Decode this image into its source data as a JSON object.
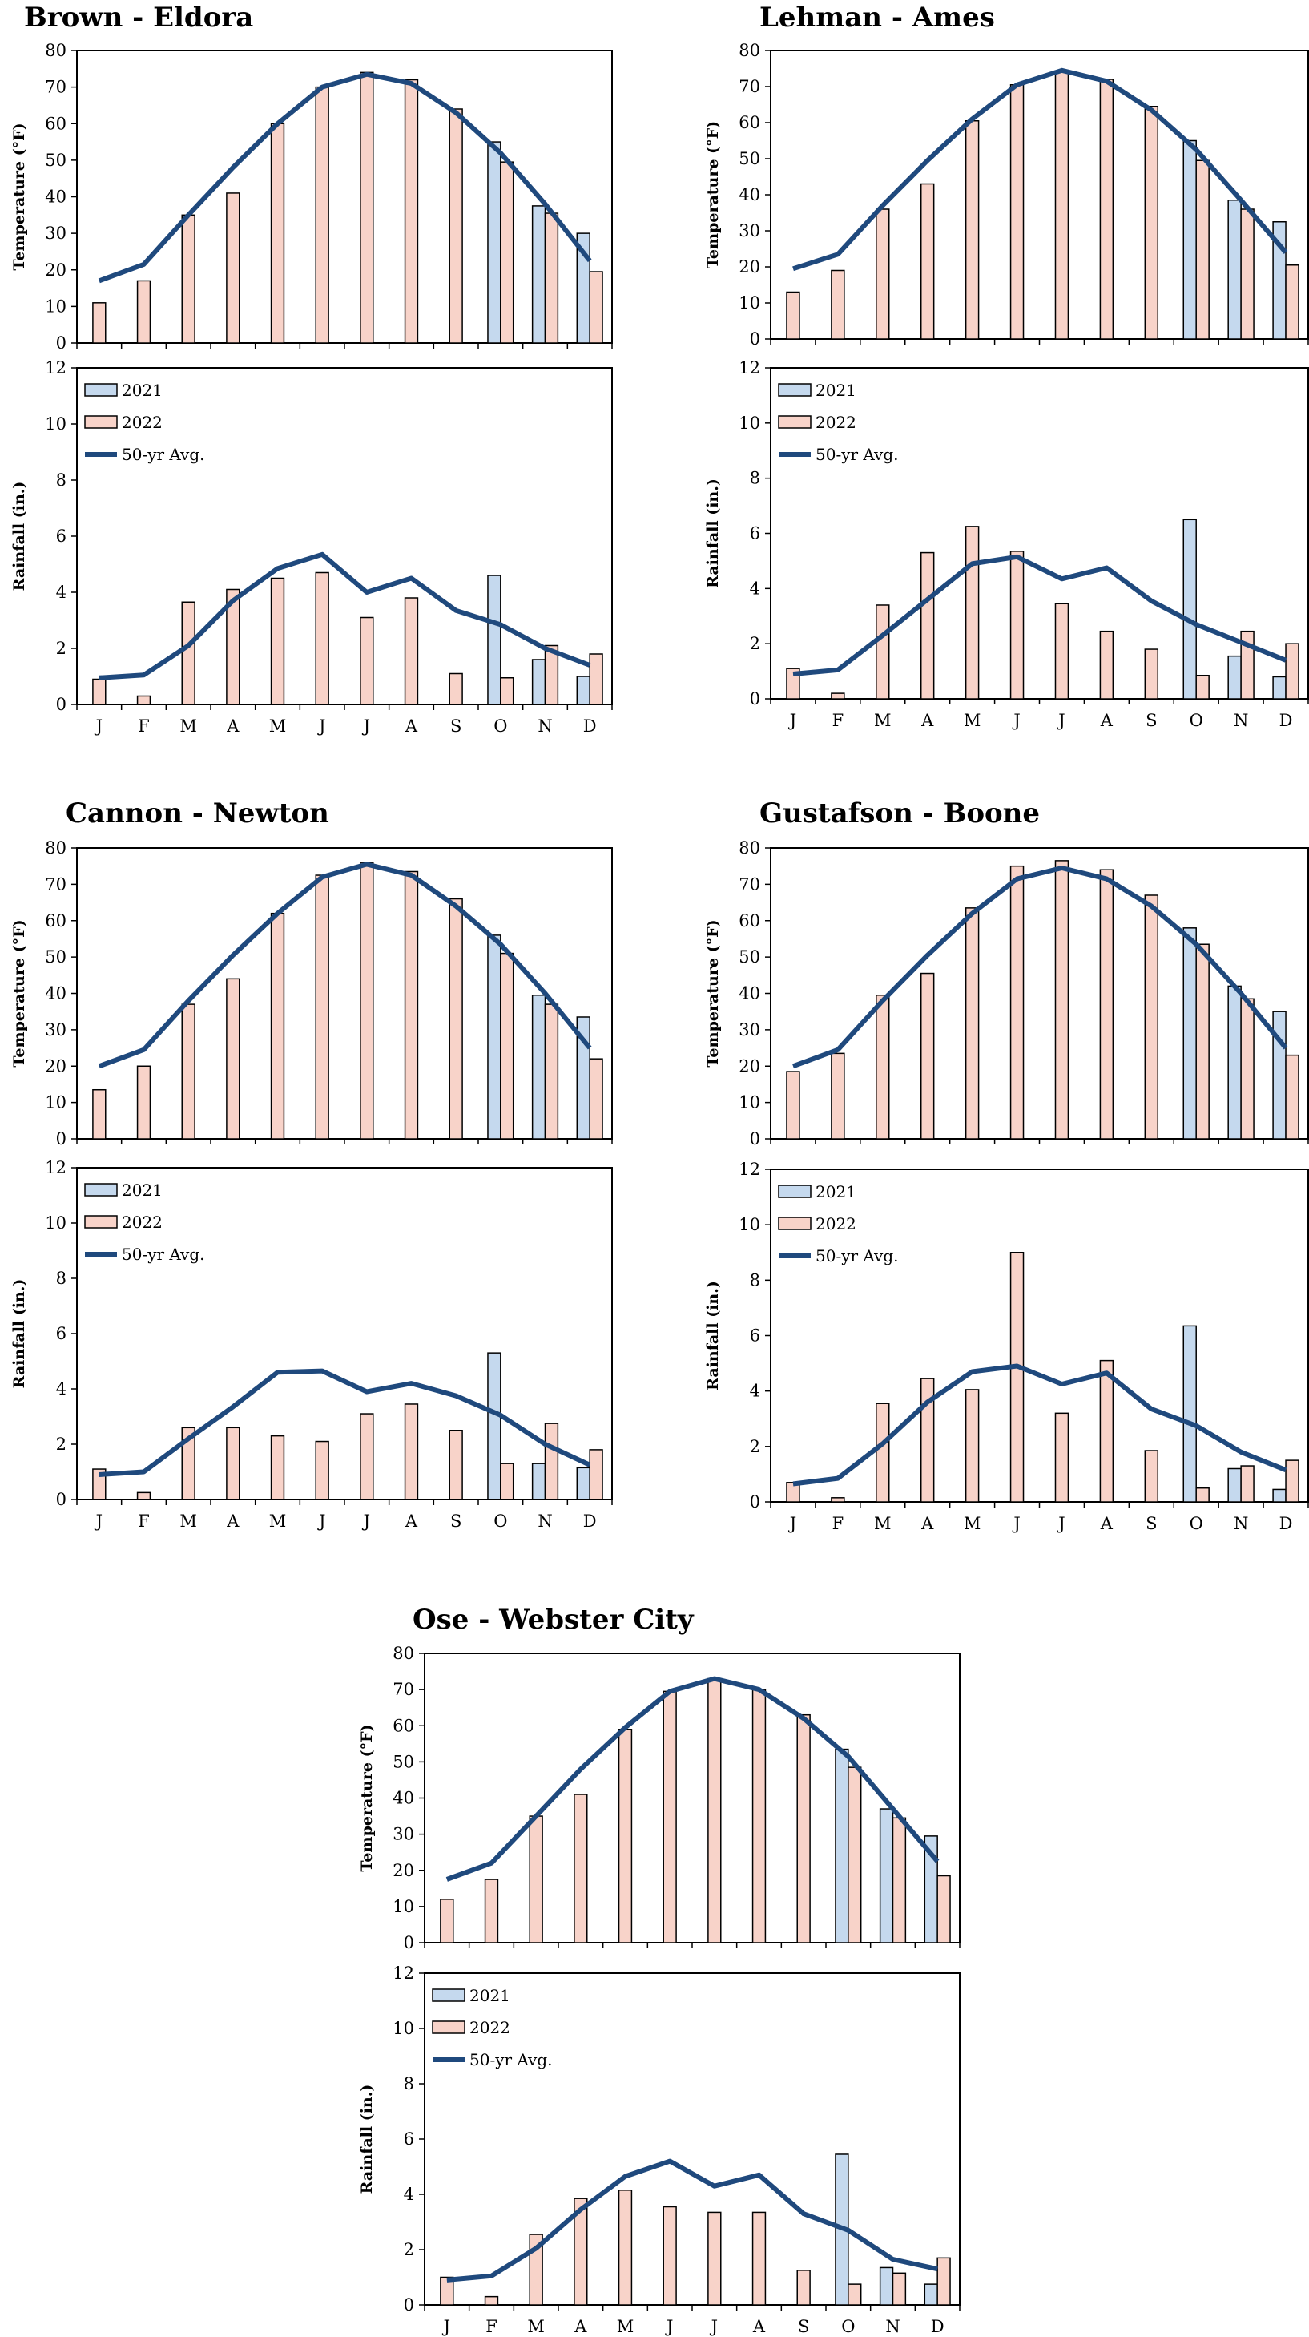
{
  "colors": {
    "bar_2021": "#c5d9ee",
    "bar_2022": "#f8d3c9",
    "avg_line": "#1f497d",
    "bar_outline": "#000000"
  },
  "legend": {
    "series_2021": "2021",
    "series_2022": "2022",
    "series_avg": "50-yr Avg."
  },
  "chart_data": [
    {
      "type": "bar",
      "site": "Brown - Eldora",
      "categories": [
        "J",
        "F",
        "M",
        "A",
        "M",
        "J",
        "J",
        "A",
        "S",
        "O",
        "N",
        "D"
      ],
      "temperature": {
        "ylabel": "Temperature (°F)",
        "ylim": [
          0,
          80
        ],
        "yticks": [
          0,
          10,
          20,
          30,
          40,
          50,
          60,
          70,
          80
        ],
        "series": [
          {
            "name": "2021",
            "values": [
              null,
              null,
              null,
              null,
              null,
              null,
              null,
              null,
              null,
              55,
              37.5,
              30
            ]
          },
          {
            "name": "2022",
            "values": [
              11,
              17,
              35,
              41,
              60,
              70,
              74,
              72,
              64,
              49.5,
              35.5,
              19.5
            ]
          },
          {
            "name": "50-yr Avg.",
            "values": [
              17,
              21.5,
              35,
              48,
              60,
              70,
              73.5,
              71,
              63,
              52,
              38,
              22.5
            ]
          }
        ]
      },
      "rainfall": {
        "ylabel": "Rainfall (in.)",
        "ylim": [
          0,
          12
        ],
        "yticks": [
          0,
          2,
          4,
          6,
          8,
          10,
          12
        ],
        "series": [
          {
            "name": "2021",
            "values": [
              null,
              null,
              null,
              null,
              null,
              null,
              null,
              null,
              null,
              4.6,
              1.6,
              1.0
            ]
          },
          {
            "name": "2022",
            "values": [
              0.9,
              0.3,
              3.65,
              4.1,
              4.5,
              4.7,
              3.1,
              3.8,
              1.1,
              0.95,
              2.1,
              1.8
            ]
          },
          {
            "name": "50-yr Avg.",
            "values": [
              0.95,
              1.05,
              2.1,
              3.7,
              4.85,
              5.35,
              4.0,
              4.5,
              3.35,
              2.85,
              2.0,
              1.4
            ]
          }
        ]
      }
    },
    {
      "type": "bar",
      "site": "Lehman - Ames",
      "categories": [
        "J",
        "F",
        "M",
        "A",
        "M",
        "J",
        "J",
        "A",
        "S",
        "O",
        "N",
        "D"
      ],
      "temperature": {
        "ylabel": "Temperature (°F)",
        "ylim": [
          0,
          80
        ],
        "yticks": [
          0,
          10,
          20,
          30,
          40,
          50,
          60,
          70,
          80
        ],
        "series": [
          {
            "name": "2021",
            "values": [
              null,
              null,
              null,
              null,
              null,
              null,
              null,
              null,
              null,
              55,
              38.5,
              32.5
            ]
          },
          {
            "name": "2022",
            "values": [
              13,
              19,
              36,
              43,
              60.5,
              70.5,
              74,
              72,
              64.5,
              49.5,
              36,
              20.5
            ]
          },
          {
            "name": "50-yr Avg.",
            "values": [
              19.5,
              23.5,
              37,
              49.5,
              61,
              70.5,
              74.5,
              71.5,
              63.5,
              52.5,
              38.5,
              24
            ]
          }
        ]
      },
      "rainfall": {
        "ylabel": "Rainfall (in.)",
        "ylim": [
          0,
          12
        ],
        "yticks": [
          0,
          2,
          4,
          6,
          8,
          10,
          12
        ],
        "series": [
          {
            "name": "2021",
            "values": [
              null,
              null,
              null,
              null,
              null,
              null,
              null,
              null,
              null,
              6.5,
              1.55,
              0.8
            ]
          },
          {
            "name": "2022",
            "values": [
              1.1,
              0.2,
              3.4,
              5.3,
              6.25,
              5.35,
              3.45,
              2.45,
              1.8,
              0.85,
              2.45,
              2.0
            ]
          },
          {
            "name": "50-yr Avg.",
            "values": [
              0.9,
              1.05,
              2.3,
              3.6,
              4.9,
              5.15,
              4.35,
              4.75,
              3.55,
              2.7,
              2.05,
              1.4
            ]
          }
        ]
      }
    },
    {
      "type": "bar",
      "site": "Cannon - Newton",
      "categories": [
        "J",
        "F",
        "M",
        "A",
        "M",
        "J",
        "J",
        "A",
        "S",
        "O",
        "N",
        "D"
      ],
      "temperature": {
        "ylabel": "Temperature (°F)",
        "ylim": [
          0,
          80
        ],
        "yticks": [
          0,
          10,
          20,
          30,
          40,
          50,
          60,
          70,
          80
        ],
        "series": [
          {
            "name": "2021",
            "values": [
              null,
              null,
              null,
              null,
              null,
              null,
              null,
              null,
              null,
              56,
              39.5,
              33.5
            ]
          },
          {
            "name": "2022",
            "values": [
              13.5,
              20,
              37,
              44,
              62,
              72.5,
              76,
              73.5,
              66,
              51,
              37,
              22
            ]
          },
          {
            "name": "50-yr Avg.",
            "values": [
              20,
              24.5,
              38,
              50.5,
              62,
              72,
              75.5,
              72.5,
              64,
              53.5,
              40,
              25
            ]
          }
        ]
      },
      "rainfall": {
        "ylabel": "Rainfall (in.)",
        "ylim": [
          0,
          12
        ],
        "yticks": [
          0,
          2,
          4,
          6,
          8,
          10,
          12
        ],
        "series": [
          {
            "name": "2021",
            "values": [
              null,
              null,
              null,
              null,
              null,
              null,
              null,
              null,
              null,
              5.3,
              1.3,
              1.15
            ]
          },
          {
            "name": "2022",
            "values": [
              1.1,
              0.25,
              2.6,
              2.6,
              2.3,
              2.1,
              3.1,
              3.45,
              2.5,
              1.3,
              2.75,
              1.8
            ]
          },
          {
            "name": "50-yr Avg.",
            "values": [
              0.9,
              1.0,
              2.2,
              3.35,
              4.6,
              4.65,
              3.9,
              4.2,
              3.75,
              3.05,
              2.0,
              1.25
            ]
          }
        ]
      }
    },
    {
      "type": "bar",
      "site": "Gustafson - Boone",
      "categories": [
        "J",
        "F",
        "M",
        "A",
        "M",
        "J",
        "J",
        "A",
        "S",
        "O",
        "N",
        "D"
      ],
      "temperature": {
        "ylabel": "Temperature (°F)",
        "ylim": [
          0,
          80
        ],
        "yticks": [
          0,
          10,
          20,
          30,
          40,
          50,
          60,
          70,
          80
        ],
        "series": [
          {
            "name": "2021",
            "values": [
              null,
              null,
              null,
              null,
              null,
              null,
              null,
              null,
              null,
              58,
              42,
              35
            ]
          },
          {
            "name": "2022",
            "values": [
              18.5,
              23.5,
              39.5,
              45.5,
              63.5,
              75,
              76.5,
              74,
              67,
              53.5,
              38.5,
              23
            ]
          },
          {
            "name": "50-yr Avg.",
            "values": [
              20,
              24.5,
              38,
              50.5,
              62,
              71.5,
              74.5,
              71.5,
              64,
              53.5,
              40,
              25
            ]
          }
        ]
      },
      "rainfall": {
        "ylabel": "Rainfall (in.)",
        "ylim": [
          0,
          12
        ],
        "yticks": [
          0,
          2,
          4,
          6,
          8,
          10,
          12
        ],
        "series": [
          {
            "name": "2021",
            "values": [
              null,
              null,
              null,
              null,
              null,
              null,
              null,
              null,
              null,
              6.35,
              1.2,
              0.45
            ]
          },
          {
            "name": "2022",
            "values": [
              0.7,
              0.15,
              3.55,
              4.45,
              4.05,
              9.0,
              3.2,
              5.1,
              1.85,
              0.5,
              1.3,
              1.5
            ]
          },
          {
            "name": "50-yr Avg.",
            "values": [
              0.65,
              0.85,
              2.1,
              3.6,
              4.7,
              4.9,
              4.25,
              4.65,
              3.35,
              2.75,
              1.8,
              1.15
            ]
          }
        ]
      }
    },
    {
      "type": "bar",
      "site": "Ose - Webster City",
      "categories": [
        "J",
        "F",
        "M",
        "A",
        "M",
        "J",
        "J",
        "A",
        "S",
        "O",
        "N",
        "D"
      ],
      "temperature": {
        "ylabel": "Temperature (°F)",
        "ylim": [
          0,
          80
        ],
        "yticks": [
          0,
          10,
          20,
          30,
          40,
          50,
          60,
          70,
          80
        ],
        "series": [
          {
            "name": "2021",
            "values": [
              null,
              null,
              null,
              null,
              null,
              null,
              null,
              null,
              null,
              53.5,
              37,
              29.5
            ]
          },
          {
            "name": "2022",
            "values": [
              12,
              17.5,
              35,
              41,
              59,
              69.5,
              73,
              70,
              63,
              48.5,
              34.5,
              18.5
            ]
          },
          {
            "name": "50-yr Avg.",
            "values": [
              17.5,
              22,
              35,
              48,
              59.5,
              69.5,
              73,
              70,
              62,
              51.5,
              37,
              22.5
            ]
          }
        ]
      },
      "rainfall": {
        "ylabel": "Rainfall (in.)",
        "ylim": [
          0,
          12
        ],
        "yticks": [
          0,
          2,
          4,
          6,
          8,
          10,
          12
        ],
        "series": [
          {
            "name": "2021",
            "values": [
              null,
              null,
              null,
              null,
              null,
              null,
              null,
              null,
              null,
              5.45,
              1.35,
              0.75
            ]
          },
          {
            "name": "2022",
            "values": [
              1.0,
              0.3,
              2.55,
              3.85,
              4.15,
              3.55,
              3.35,
              3.35,
              1.25,
              0.75,
              1.15,
              1.7
            ]
          },
          {
            "name": "50-yr Avg.",
            "values": [
              0.9,
              1.05,
              2.05,
              3.45,
              4.65,
              5.2,
              4.3,
              4.7,
              3.3,
              2.7,
              1.65,
              1.3
            ]
          }
        ]
      }
    }
  ]
}
